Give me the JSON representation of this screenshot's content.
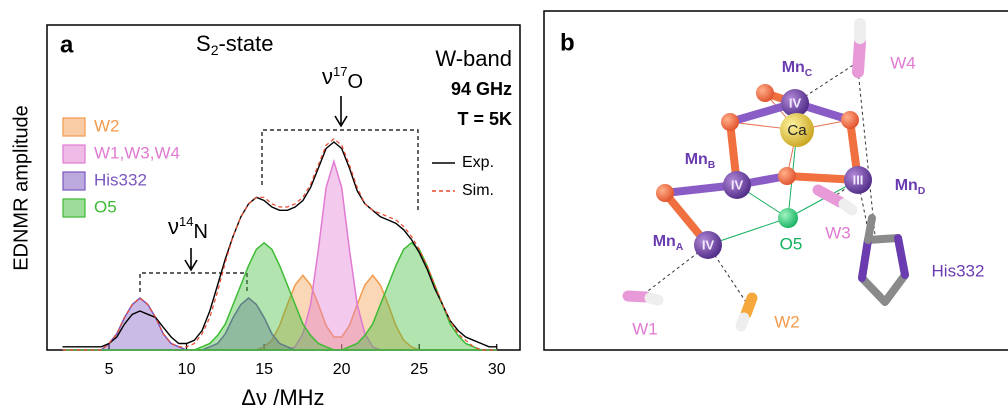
{
  "chart_data": {
    "type": "area",
    "panel_label": "a",
    "title_parts": [
      "S",
      "2",
      "-state"
    ],
    "band": "W-band",
    "frequency": "94 GHz",
    "temperature": "T = 5K",
    "nu_O_parts": [
      "ν",
      "17",
      "O"
    ],
    "nu_N_parts": [
      "ν",
      "14",
      "N"
    ],
    "ylabel": "EDNMR amplitude",
    "xlabel": "Δν /MHz",
    "xlim": [
      1,
      31.5
    ],
    "xticks": [
      5,
      10,
      15,
      20,
      25,
      30
    ],
    "ylim": [
      0,
      1
    ],
    "x": [
      2,
      2.5,
      3,
      3.5,
      4,
      4.5,
      5,
      5.5,
      6,
      6.5,
      7,
      7.5,
      8,
      8.5,
      9,
      9.5,
      10,
      10.5,
      11,
      11.5,
      12,
      12.5,
      13,
      13.5,
      14,
      14.5,
      15,
      15.5,
      16,
      16.5,
      17,
      17.5,
      18,
      18.5,
      19,
      19.5,
      20,
      20.5,
      21,
      21.5,
      22,
      22.5,
      23,
      23.5,
      24,
      24.5,
      25,
      25.5,
      26,
      26.5,
      27,
      27.5,
      28,
      28.5,
      29,
      29.5,
      30
    ],
    "series": [
      {
        "name": "W2",
        "color": "#f39a4c",
        "fill": true,
        "values": [
          0,
          0,
          0,
          0,
          0,
          0,
          0,
          0,
          0,
          0,
          0,
          0,
          0,
          0,
          0,
          0,
          0,
          0,
          0,
          0,
          0,
          0,
          0,
          0,
          0,
          0,
          0.01,
          0.03,
          0.075,
          0.14,
          0.2,
          0.23,
          0.2,
          0.14,
          0.075,
          0.04,
          0.04,
          0.075,
          0.14,
          0.2,
          0.23,
          0.2,
          0.14,
          0.075,
          0.03,
          0.01,
          0,
          0,
          0,
          0,
          0,
          0,
          0,
          0,
          0,
          0,
          0
        ]
      },
      {
        "name": "W1,W3,W4",
        "color": "#e07ad2",
        "fill": true,
        "values": [
          0,
          0,
          0,
          0,
          0,
          0,
          0,
          0,
          0,
          0,
          0,
          0,
          0,
          0,
          0,
          0,
          0,
          0,
          0,
          0,
          0,
          0,
          0,
          0,
          0,
          0,
          0,
          0,
          0,
          0,
          0.01,
          0.05,
          0.14,
          0.31,
          0.5,
          0.58,
          0.5,
          0.31,
          0.14,
          0.05,
          0.01,
          0,
          0,
          0,
          0,
          0,
          0,
          0,
          0,
          0,
          0,
          0,
          0,
          0,
          0,
          0,
          0
        ]
      },
      {
        "name": "His332",
        "color": "#7a56c0",
        "fill": true,
        "values": [
          0,
          0,
          0,
          0,
          0,
          0,
          0.02,
          0.05,
          0.1,
          0.14,
          0.16,
          0.14,
          0.1,
          0.05,
          0.02,
          0.01,
          0,
          0,
          0,
          0.01,
          0.02,
          0.05,
          0.1,
          0.14,
          0.16,
          0.14,
          0.1,
          0.05,
          0.02,
          0.01,
          0,
          0,
          0,
          0,
          0,
          0,
          0,
          0,
          0,
          0,
          0,
          0,
          0,
          0,
          0,
          0,
          0,
          0,
          0,
          0,
          0,
          0,
          0,
          0,
          0,
          0,
          0
        ]
      },
      {
        "name": "O5",
        "color": "#3dbb34",
        "fill": true,
        "values": [
          0,
          0,
          0,
          0,
          0,
          0,
          0,
          0,
          0,
          0,
          0,
          0,
          0,
          0,
          0,
          0,
          0,
          0,
          0.01,
          0.02,
          0.045,
          0.08,
          0.14,
          0.2,
          0.26,
          0.31,
          0.33,
          0.31,
          0.26,
          0.2,
          0.14,
          0.08,
          0.045,
          0.02,
          0.01,
          0,
          0,
          0.01,
          0.02,
          0.045,
          0.08,
          0.14,
          0.2,
          0.26,
          0.31,
          0.33,
          0.31,
          0.26,
          0.2,
          0.14,
          0.08,
          0.045,
          0.02,
          0.01,
          0,
          0,
          0
        ]
      },
      {
        "name": "Exp.",
        "color": "#000000",
        "fill": false,
        "dashed": false,
        "values": [
          0.01,
          0.01,
          0.01,
          0.01,
          0.01,
          0.01,
          0.02,
          0.04,
          0.08,
          0.11,
          0.12,
          0.11,
          0.1,
          0.07,
          0.04,
          0.02,
          0.02,
          0.03,
          0.06,
          0.12,
          0.2,
          0.28,
          0.35,
          0.41,
          0.45,
          0.47,
          0.46,
          0.44,
          0.43,
          0.43,
          0.44,
          0.46,
          0.5,
          0.56,
          0.62,
          0.64,
          0.62,
          0.56,
          0.49,
          0.45,
          0.43,
          0.41,
          0.4,
          0.39,
          0.37,
          0.34,
          0.3,
          0.25,
          0.19,
          0.14,
          0.09,
          0.06,
          0.04,
          0.03,
          0.02,
          0.01,
          0.01
        ]
      },
      {
        "name": "Sim.",
        "color": "#e8492e",
        "fill": false,
        "dashed": true,
        "values": [
          0,
          0,
          0,
          0,
          0,
          0,
          0.02,
          0.05,
          0.1,
          0.14,
          0.16,
          0.14,
          0.1,
          0.05,
          0.02,
          0.01,
          0.01,
          0.02,
          0.05,
          0.1,
          0.18,
          0.27,
          0.35,
          0.41,
          0.45,
          0.47,
          0.47,
          0.45,
          0.44,
          0.44,
          0.45,
          0.47,
          0.51,
          0.57,
          0.63,
          0.65,
          0.63,
          0.57,
          0.5,
          0.45,
          0.43,
          0.42,
          0.41,
          0.4,
          0.38,
          0.35,
          0.31,
          0.26,
          0.2,
          0.14,
          0.09,
          0.05,
          0.03,
          0.01,
          0,
          0,
          0
        ]
      }
    ]
  },
  "panel_b": {
    "label": "b",
    "mn_labels": [
      [
        "Mn",
        "C"
      ],
      [
        "Mn",
        "B"
      ],
      [
        "Mn",
        "D"
      ],
      [
        "Mn",
        "A"
      ]
    ],
    "oxidation_states": [
      "IV",
      "IV",
      "III",
      "IV"
    ],
    "ca": "Ca",
    "o5": "O5",
    "w4": "W4",
    "w3": "W3",
    "w1": "W1",
    "w2": "W2",
    "his": "His332"
  }
}
